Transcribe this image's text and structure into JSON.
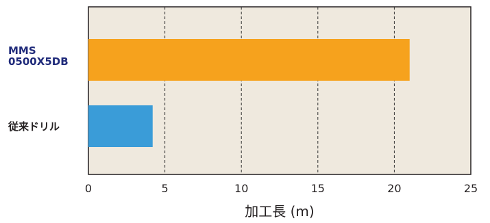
{
  "chart_data": {
    "type": "bar",
    "orientation": "horizontal",
    "categories": [
      "MMS\n0500X5DB",
      "従来ドリル"
    ],
    "values": [
      21,
      4.2
    ],
    "xlabel": "加工長 (m)",
    "ylabel": "",
    "xlim": [
      0,
      25
    ],
    "xticks": [
      0,
      5,
      10,
      15,
      20,
      25
    ],
    "grid": "vertical-dashed",
    "colors": {
      "bars": [
        "#f6a21d",
        "#3a9cd8"
      ],
      "plot_background": "#efe9de",
      "category_label_colors": [
        "#1f2a7a",
        "#231f20"
      ],
      "grid": "#333333"
    }
  }
}
